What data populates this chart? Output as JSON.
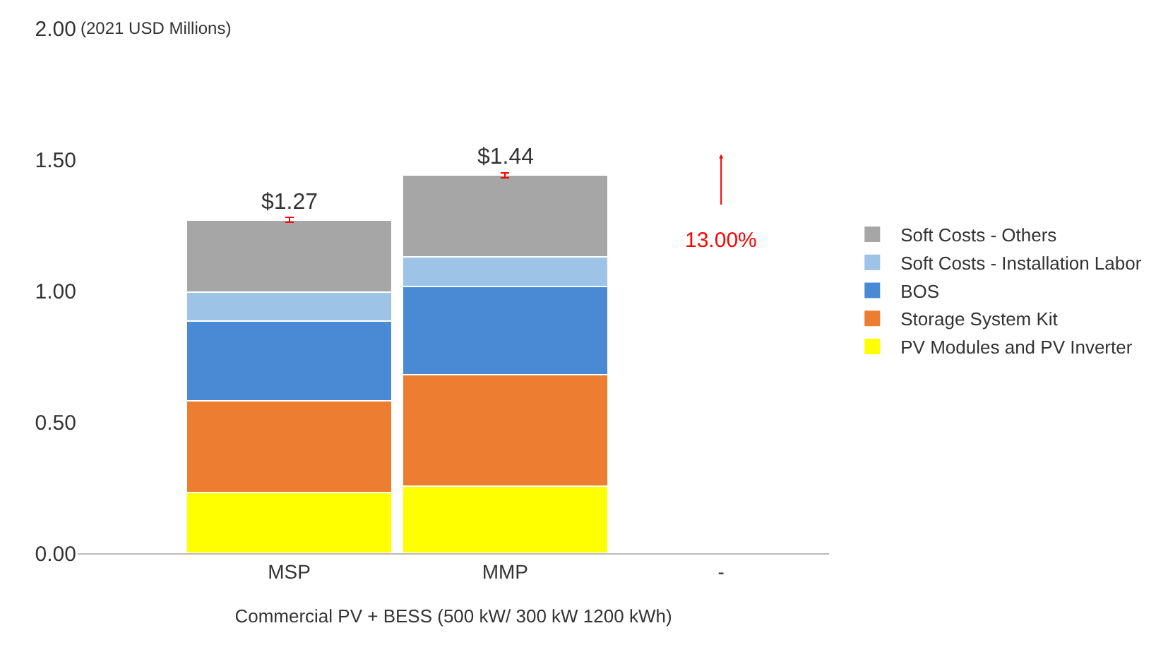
{
  "chart_data": {
    "type": "bar",
    "stacked": true,
    "ylabel": "(2021 USD Millions)",
    "xlabel": "Commercial PV + BESS (500 kW/ 300 kW 1200 kWh)",
    "categories": [
      "MSP",
      "MMP",
      "-"
    ],
    "series": [
      {
        "name": "PV Modules and PV Inverter",
        "color": "#ffff00",
        "values": [
          0.23,
          0.255,
          null
        ]
      },
      {
        "name": "Storage System Kit",
        "color": "#ed7d31",
        "values": [
          0.35,
          0.425,
          null
        ]
      },
      {
        "name": "BOS",
        "color": "#4a8ad4",
        "values": [
          0.305,
          0.335,
          null
        ]
      },
      {
        "name": "Soft Costs - Installation Labor",
        "color": "#9dc3e6",
        "values": [
          0.11,
          0.115,
          null
        ]
      },
      {
        "name": "Soft Costs - Others",
        "color": "#a6a6a6",
        "values": [
          0.275,
          0.31,
          null
        ],
        "errors": [
          0.01,
          0.01,
          null
        ]
      }
    ],
    "totals": [
      "$1.27",
      "$1.44",
      null
    ],
    "annotations": [
      "13.00%"
    ],
    "ylim": [
      0,
      2
    ],
    "yticks": [
      {
        "value": 0,
        "label": "0.00"
      },
      {
        "value": 0.5,
        "label": "0.50"
      },
      {
        "value": 1,
        "label": "1.00"
      },
      {
        "value": 1.5,
        "label": "1.50"
      },
      {
        "value": 2,
        "label": "2.00"
      }
    ],
    "grid": false,
    "legend": "right"
  }
}
